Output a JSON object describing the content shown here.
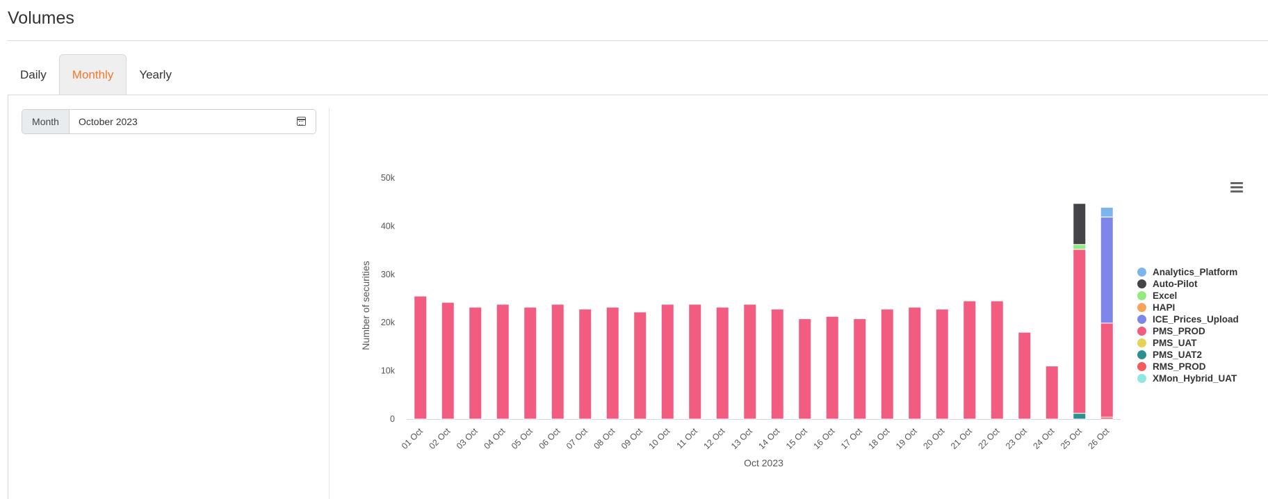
{
  "page": {
    "title": "Volumes"
  },
  "tabs": [
    {
      "label": "Daily",
      "active": false
    },
    {
      "label": "Monthly",
      "active": true
    },
    {
      "label": "Yearly",
      "active": false
    }
  ],
  "filter": {
    "label": "Month",
    "value": "October 2023",
    "icon": "calendar-icon"
  },
  "menu_icon": "hamburger-menu-icon",
  "colors": {
    "accent": "#f07a2a"
  },
  "chart_data": {
    "type": "bar",
    "stacked": true,
    "xlabel": "Oct 2023",
    "ylabel": "Number of securities",
    "ylim": [
      0,
      50000
    ],
    "yticks": [
      {
        "value": 0,
        "label": "0"
      },
      {
        "value": 10000,
        "label": "10k"
      },
      {
        "value": 20000,
        "label": "20k"
      },
      {
        "value": 30000,
        "label": "30k"
      },
      {
        "value": 40000,
        "label": "40k"
      },
      {
        "value": 50000,
        "label": "50k"
      }
    ],
    "categories": [
      "01 Oct",
      "02 Oct",
      "03 Oct",
      "04 Oct",
      "05 Oct",
      "06 Oct",
      "07 Oct",
      "08 Oct",
      "09 Oct",
      "10 Oct",
      "11 Oct",
      "12 Oct",
      "13 Oct",
      "14 Oct",
      "15 Oct",
      "16 Oct",
      "17 Oct",
      "18 Oct",
      "19 Oct",
      "20 Oct",
      "21 Oct",
      "22 Oct",
      "23 Oct",
      "24 Oct",
      "25 Oct",
      "26 Oct"
    ],
    "legend_position": "right",
    "series": [
      {
        "name": "Analytics_Platform",
        "color": "#7cb5ec",
        "values": [
          0,
          0,
          0,
          0,
          0,
          0,
          0,
          0,
          0,
          0,
          0,
          0,
          0,
          0,
          0,
          0,
          0,
          0,
          0,
          0,
          0,
          0,
          0,
          0,
          0,
          2000
        ]
      },
      {
        "name": "Auto-Pilot",
        "color": "#434348",
        "values": [
          0,
          0,
          0,
          0,
          0,
          0,
          0,
          0,
          0,
          0,
          0,
          0,
          0,
          0,
          0,
          0,
          0,
          0,
          0,
          0,
          0,
          0,
          0,
          0,
          8500,
          0
        ]
      },
      {
        "name": "Excel",
        "color": "#90ed7d",
        "values": [
          0,
          0,
          0,
          0,
          0,
          0,
          0,
          0,
          0,
          0,
          0,
          0,
          0,
          0,
          0,
          0,
          0,
          0,
          0,
          0,
          0,
          0,
          0,
          0,
          1000,
          0
        ]
      },
      {
        "name": "HAPI",
        "color": "#f7a35c",
        "values": [
          0,
          0,
          0,
          0,
          0,
          0,
          0,
          0,
          0,
          0,
          0,
          0,
          0,
          0,
          0,
          0,
          0,
          0,
          0,
          0,
          0,
          0,
          0,
          0,
          0,
          0
        ]
      },
      {
        "name": "ICE_Prices_Upload",
        "color": "#8085e9",
        "values": [
          0,
          0,
          0,
          0,
          0,
          0,
          0,
          0,
          0,
          0,
          0,
          0,
          0,
          0,
          0,
          0,
          0,
          0,
          0,
          0,
          0,
          0,
          0,
          0,
          0,
          22000
        ]
      },
      {
        "name": "PMS_PROD",
        "color": "#f15c80",
        "values": [
          25500,
          24200,
          23200,
          23800,
          23200,
          23800,
          22800,
          23200,
          22200,
          23800,
          23800,
          23200,
          23800,
          22800,
          20800,
          21300,
          20800,
          22800,
          23200,
          22800,
          24500,
          24500,
          18000,
          11000,
          34000,
          19500
        ]
      },
      {
        "name": "PMS_UAT",
        "color": "#e4d354",
        "values": [
          0,
          0,
          0,
          0,
          0,
          0,
          0,
          0,
          0,
          0,
          0,
          0,
          0,
          0,
          0,
          0,
          0,
          0,
          0,
          0,
          0,
          0,
          0,
          0,
          0,
          0
        ]
      },
      {
        "name": "PMS_UAT2",
        "color": "#2b908f",
        "values": [
          0,
          0,
          0,
          0,
          0,
          0,
          0,
          0,
          0,
          0,
          0,
          0,
          0,
          0,
          0,
          0,
          0,
          0,
          0,
          0,
          0,
          0,
          0,
          0,
          1200,
          0
        ]
      },
      {
        "name": "RMS_PROD",
        "color": "#f45b5b",
        "values": [
          0,
          0,
          0,
          0,
          0,
          0,
          0,
          0,
          0,
          0,
          0,
          0,
          0,
          0,
          0,
          0,
          0,
          0,
          0,
          0,
          0,
          0,
          0,
          0,
          0,
          400
        ]
      },
      {
        "name": "XMon_Hybrid_UAT",
        "color": "#91e8e1",
        "values": [
          0,
          0,
          0,
          0,
          0,
          0,
          0,
          0,
          0,
          0,
          0,
          0,
          0,
          0,
          0,
          0,
          0,
          0,
          0,
          0,
          0,
          0,
          0,
          0,
          0,
          0
        ]
      }
    ]
  }
}
